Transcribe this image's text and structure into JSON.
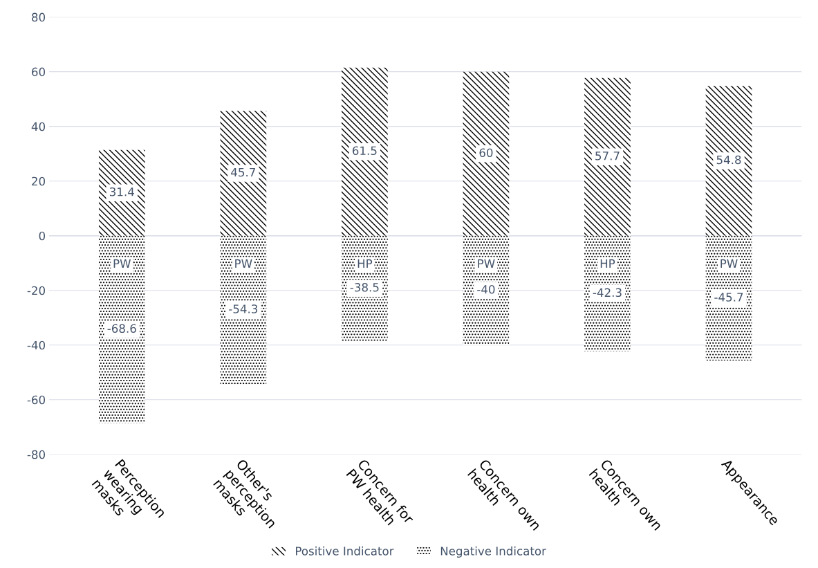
{
  "chart_data": {
    "type": "bar",
    "stacked": true,
    "categories": [
      "Perception\nwearing\nmasks",
      "Other's\nperception\nmasks",
      "Concern for\nPW health",
      "Concern own\nhealth",
      "Concern own\nhealth",
      "Appearance"
    ],
    "series": [
      {
        "name": "Positive Indicator",
        "color": "#000000",
        "values": [
          31.4,
          45.7,
          61.5,
          60,
          57.7,
          54.8
        ],
        "value_labels": [
          "31.4",
          "45.7",
          "61.5",
          "60",
          "57.7",
          "54.8"
        ]
      },
      {
        "name": "Negative Indicator",
        "color": "#000000",
        "values": [
          -68.6,
          -54.3,
          -38.5,
          -40,
          -42.3,
          -45.7
        ],
        "value_labels": [
          "-68.6",
          "-54.3",
          "-38.5",
          "-40",
          "-42.3",
          "-45.7"
        ]
      }
    ],
    "ylim": [
      -80,
      80
    ],
    "yticks": [
      -80,
      -60,
      -40,
      -20,
      0,
      20,
      40,
      60,
      80
    ],
    "grid": "y",
    "legend": "bottom",
    "annotations": [
      "PW",
      "PW",
      "HP",
      "PW",
      "HP",
      "PW"
    ]
  }
}
